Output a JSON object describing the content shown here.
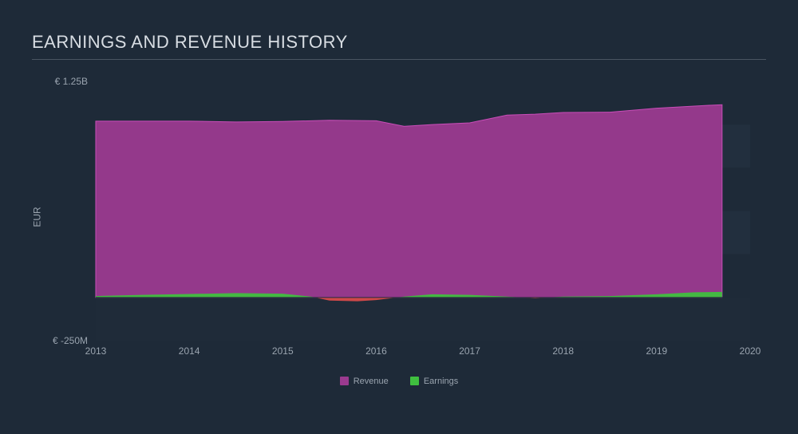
{
  "chart": {
    "type": "area",
    "title": "EARNINGS AND REVENUE HISTORY",
    "title_fontsize": 22,
    "title_color": "#d8dde3",
    "background_color": "#1e2a38",
    "plot_background_bands": true,
    "band_colors": [
      "#1e2a38",
      "#222f3e"
    ],
    "axis_label_color": "#9aa4af",
    "axis_label_fontsize": 12,
    "ylabel": "EUR",
    "x": {
      "min": 2013,
      "max": 2020,
      "ticks": [
        2013,
        2014,
        2015,
        2016,
        2017,
        2018,
        2019,
        2020
      ]
    },
    "y": {
      "min": -250,
      "max": 1250,
      "baseline": 0,
      "tick_labels": [
        {
          "value": 1250,
          "label": "€ 1.25B"
        },
        {
          "value": -250,
          "label": "€ -250M"
        }
      ],
      "grid_band_lines": [
        1250,
        1000,
        750,
        500,
        250,
        0,
        -250
      ]
    },
    "series": [
      {
        "name": "Revenue",
        "color": "#9b3a8f",
        "fill_opacity": 0.95,
        "stroke": "#c94db8",
        "points": [
          {
            "x": 2013.0,
            "y": 1020
          },
          {
            "x": 2013.5,
            "y": 1020
          },
          {
            "x": 2014.0,
            "y": 1020
          },
          {
            "x": 2014.5,
            "y": 1015
          },
          {
            "x": 2015.0,
            "y": 1018
          },
          {
            "x": 2015.5,
            "y": 1025
          },
          {
            "x": 2016.0,
            "y": 1022
          },
          {
            "x": 2016.3,
            "y": 990
          },
          {
            "x": 2016.6,
            "y": 1000
          },
          {
            "x": 2017.0,
            "y": 1010
          },
          {
            "x": 2017.4,
            "y": 1055
          },
          {
            "x": 2017.7,
            "y": 1060
          },
          {
            "x": 2018.0,
            "y": 1070
          },
          {
            "x": 2018.5,
            "y": 1072
          },
          {
            "x": 2019.0,
            "y": 1095
          },
          {
            "x": 2019.5,
            "y": 1110
          },
          {
            "x": 2019.7,
            "y": 1115
          }
        ]
      },
      {
        "name": "Earnings",
        "color": "#3fbf3f",
        "neg_color": "#d84a4a",
        "fill_opacity": 0.95,
        "points": [
          {
            "x": 2013.0,
            "y": 8
          },
          {
            "x": 2013.5,
            "y": 15
          },
          {
            "x": 2014.0,
            "y": 20
          },
          {
            "x": 2014.5,
            "y": 25
          },
          {
            "x": 2015.0,
            "y": 22
          },
          {
            "x": 2015.3,
            "y": 5
          },
          {
            "x": 2015.5,
            "y": -18
          },
          {
            "x": 2015.8,
            "y": -22
          },
          {
            "x": 2016.0,
            "y": -15
          },
          {
            "x": 2016.3,
            "y": 5
          },
          {
            "x": 2016.6,
            "y": 18
          },
          {
            "x": 2017.0,
            "y": 15
          },
          {
            "x": 2017.4,
            "y": 5
          },
          {
            "x": 2017.7,
            "y": -5
          },
          {
            "x": 2018.0,
            "y": 5
          },
          {
            "x": 2018.5,
            "y": 8
          },
          {
            "x": 2019.0,
            "y": 18
          },
          {
            "x": 2019.4,
            "y": 30
          },
          {
            "x": 2019.7,
            "y": 32
          }
        ]
      }
    ],
    "legend": {
      "items": [
        {
          "label": "Revenue",
          "color": "#9b3a8f"
        },
        {
          "label": "Earnings",
          "color": "#3fbf3f"
        }
      ]
    }
  }
}
